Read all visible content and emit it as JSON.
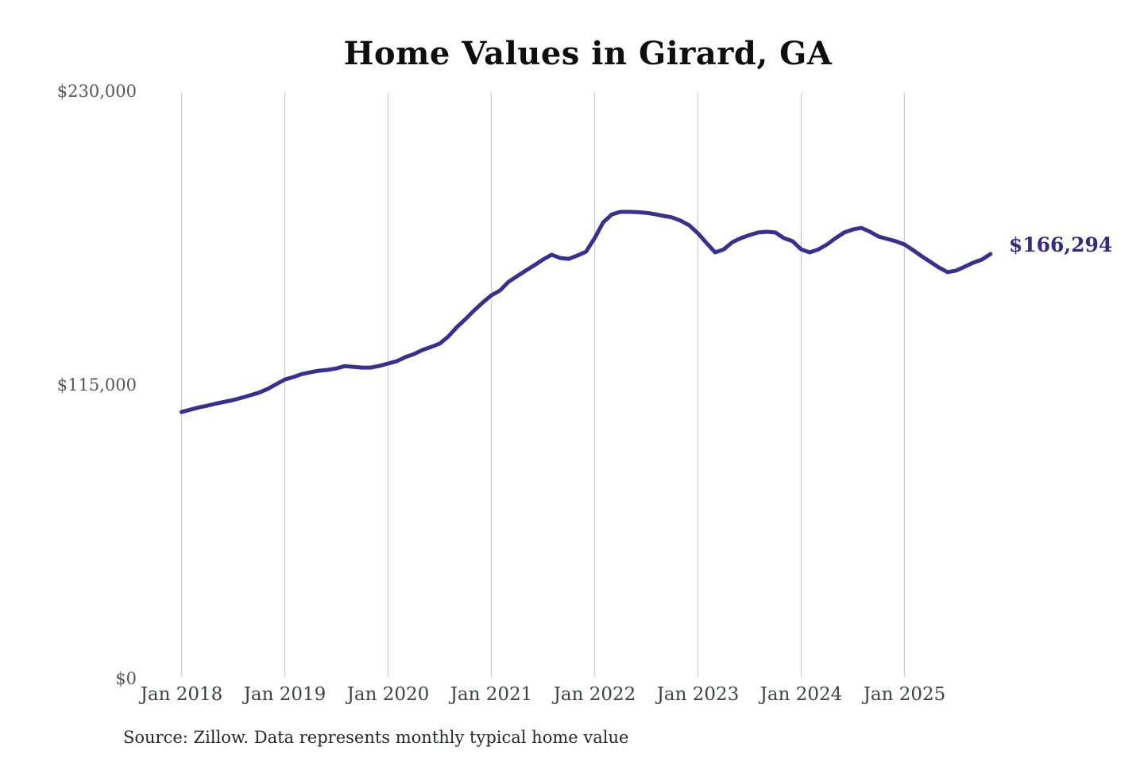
{
  "figure": {
    "background": "#ffffff"
  },
  "colors": {
    "line": "#38308f",
    "end_label": "#312b84",
    "gridline": "#cccccc",
    "title": "#0f0f0f",
    "y_tick_label": "#55575c",
    "x_tick_label": "#3f4246",
    "source_note": "#26282b"
  },
  "chart_data": {
    "type": "line",
    "title": "Home Values in Girard, GA",
    "xlabel": "",
    "ylabel": "",
    "ylim": [
      0,
      230000
    ],
    "grid": "vertical-only",
    "legend": "none",
    "x_ticks": [
      "Jan 2018",
      "Jan 2019",
      "Jan 2020",
      "Jan 2021",
      "Jan 2022",
      "Jan 2023",
      "Jan 2024",
      "Jan 2025"
    ],
    "y_ticks": [
      {
        "label": "$0",
        "value": 0
      },
      {
        "label": "$115,000",
        "value": 115000
      },
      {
        "label": "$230,000",
        "value": 230000
      }
    ],
    "end_label": "$166,294",
    "latest_value": 166294,
    "source_note": "Source: Zillow. Data represents monthly typical home value",
    "series": [
      {
        "name": "Monthly typical home value",
        "frequency": "monthly",
        "x_start": "2018-01",
        "x_end": "2025-11",
        "values": [
          104400,
          105300,
          106200,
          106900,
          107700,
          108400,
          109100,
          110000,
          111000,
          112000,
          113400,
          115300,
          117100,
          118100,
          119300,
          120000,
          120600,
          120900,
          121500,
          122400,
          122100,
          121800,
          121800,
          122500,
          123400,
          124300,
          125900,
          127100,
          128700,
          129900,
          131200,
          134000,
          137700,
          140800,
          144200,
          147300,
          150100,
          152000,
          155400,
          157600,
          159800,
          161900,
          164100,
          166000,
          164700,
          164400,
          165700,
          167200,
          172500,
          178700,
          181800,
          182800,
          182800,
          182700,
          182400,
          181900,
          181200,
          180600,
          179300,
          177500,
          174400,
          170600,
          166900,
          168100,
          170900,
          172500,
          173700,
          174700,
          175000,
          174700,
          172500,
          171300,
          168100,
          166900,
          168100,
          170000,
          172500,
          174700,
          175900,
          176500,
          175000,
          173100,
          172200,
          171300,
          170000,
          167800,
          165400,
          163200,
          161000,
          159200,
          159800,
          161300,
          162900,
          164100,
          166294
        ]
      }
    ]
  }
}
